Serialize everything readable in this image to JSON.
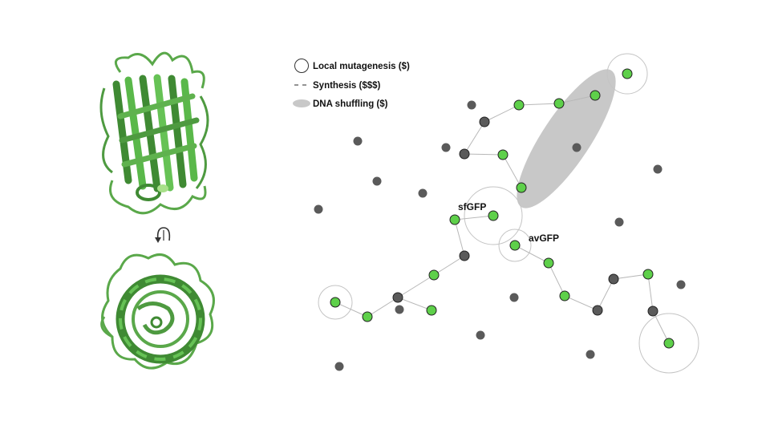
{
  "legend": {
    "local_mutagenesis": "Local mutagenesis ($)",
    "synthesis": "Synthesis ($$$)",
    "dna_shuffling": "DNA shuffling ($)"
  },
  "labels": {
    "sfgfp": "sfGFP",
    "avgfp": "avGFP"
  },
  "icons": {
    "protein_side_view": "gfp-beta-barrel-side-icon",
    "protein_top_view": "gfp-beta-barrel-top-icon",
    "rotation": "rotate-arrow-icon"
  },
  "colors": {
    "functional": "#5ed04a",
    "nonfunctional": "#5a5a5a",
    "protein": "#5aa84a",
    "shuffling": "#c8c8c8",
    "edge": "#b8b8b8"
  }
}
